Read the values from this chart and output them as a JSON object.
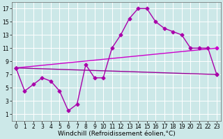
{
  "background_color": "#cce8e8",
  "grid_color": "#ffffff",
  "line_color1": "#aa00aa",
  "line_color2": "#cc00cc",
  "line_color3": "#990099",
  "xlabel": "Windchill (Refroidissement éolien,°C)",
  "xlim": [
    -0.5,
    23.5
  ],
  "ylim": [
    0,
    18
  ],
  "xticks": [
    0,
    1,
    2,
    3,
    4,
    5,
    6,
    7,
    8,
    9,
    10,
    11,
    12,
    13,
    14,
    15,
    16,
    17,
    18,
    19,
    20,
    21,
    22,
    23
  ],
  "yticks": [
    1,
    3,
    5,
    7,
    9,
    11,
    13,
    15,
    17
  ],
  "line1_x": [
    0,
    1,
    2,
    3,
    4,
    5,
    6,
    7,
    8,
    9,
    10,
    11,
    12,
    13,
    14,
    15,
    16,
    17,
    18,
    19,
    20,
    21,
    22,
    23
  ],
  "line1_y": [
    8,
    4.5,
    5.5,
    6.5,
    6,
    4.5,
    1.5,
    2.5,
    8.5,
    6.5,
    6.5,
    11,
    13,
    15.5,
    17,
    17,
    15,
    14,
    13.5,
    13,
    11,
    11,
    11,
    7
  ],
  "line2_x": [
    0,
    23
  ],
  "line2_y": [
    8,
    11
  ],
  "line3_x": [
    0,
    23
  ],
  "line3_y": [
    8,
    7
  ],
  "marker": "D",
  "marker_size": 2.5,
  "linewidth": 1.0,
  "xlabel_fontsize": 6.5,
  "tick_fontsize": 5.5
}
